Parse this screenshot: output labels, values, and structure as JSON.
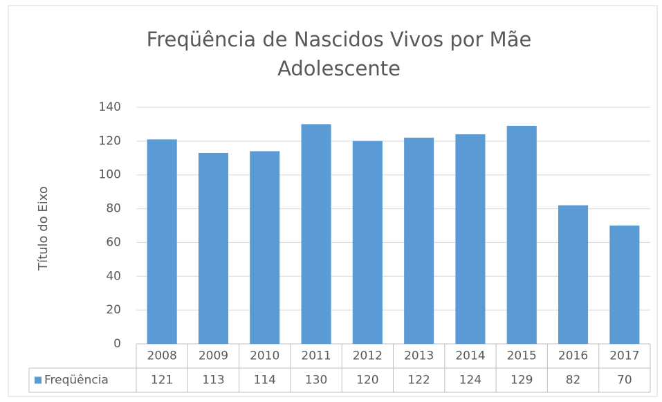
{
  "chart_data": {
    "type": "bar",
    "title": "Freqüência de Nascidos Vivos por Mãe Adolescente",
    "y_axis_label": "Título do Eixo",
    "categories": [
      "2008",
      "2009",
      "2010",
      "2011",
      "2012",
      "2013",
      "2014",
      "2015",
      "2016",
      "2017"
    ],
    "series": [
      {
        "name": "Freqüência",
        "color": "#5b9bd5",
        "values": [
          121,
          113,
          114,
          130,
          120,
          122,
          124,
          129,
          82,
          70
        ]
      }
    ],
    "ylim": [
      0,
      140
    ],
    "yticks": [
      0,
      20,
      40,
      60,
      80,
      100,
      120,
      140
    ],
    "grid": true
  }
}
